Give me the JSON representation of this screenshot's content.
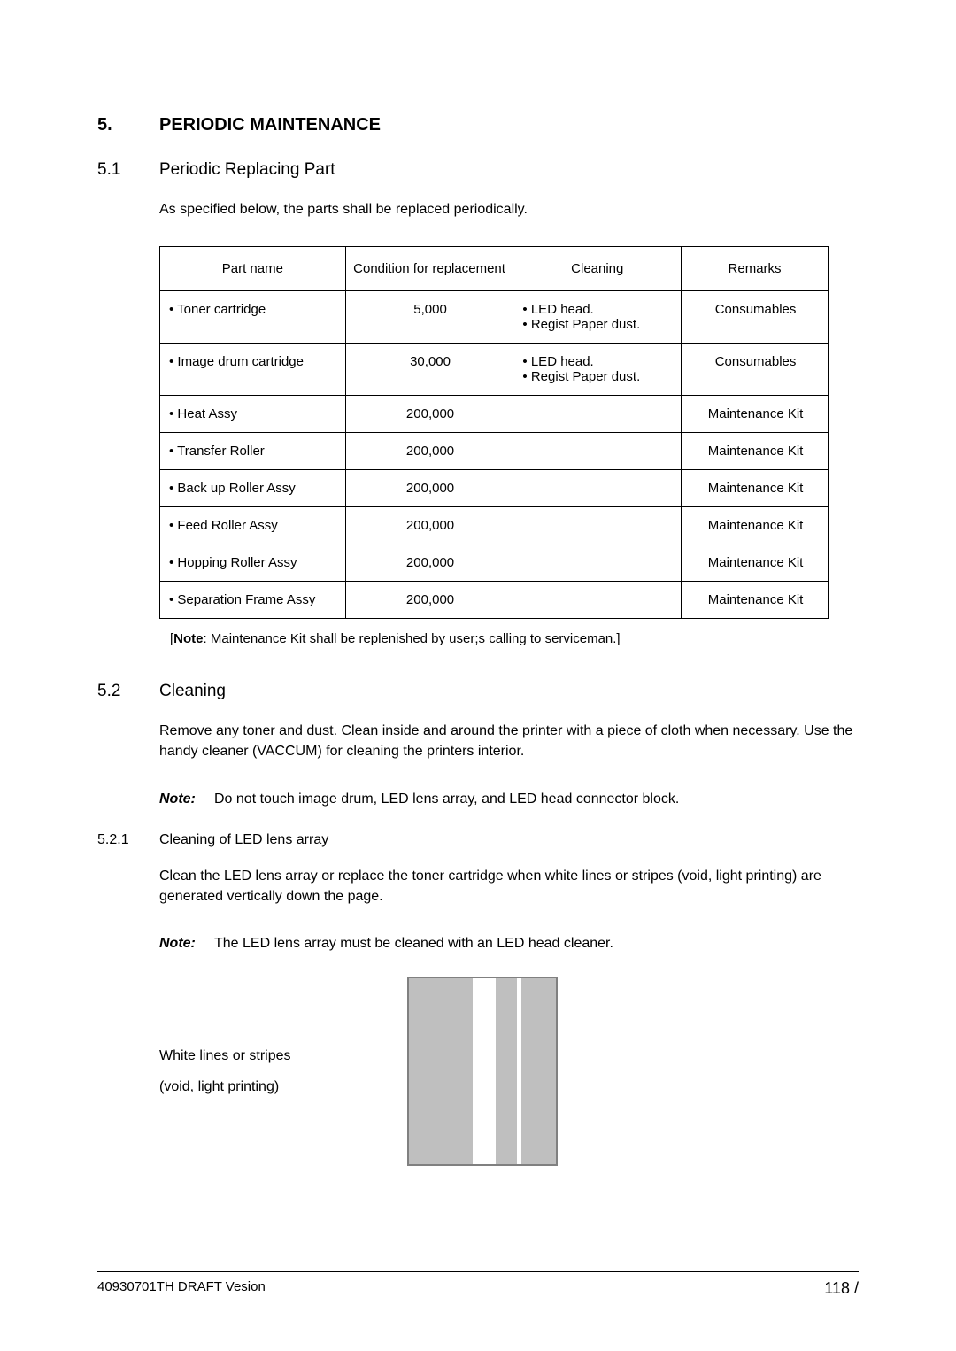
{
  "heading": {
    "number": "5.",
    "title": "PERIODIC MAINTENANCE"
  },
  "section_5_1": {
    "number": "5.1",
    "title": "Periodic Replacing Part",
    "intro": "As specified below, the parts shall be replaced periodically."
  },
  "table": {
    "headers": {
      "part": "Part name",
      "condition": "Condition for replacement",
      "cleaning": "Cleaning",
      "remarks": "Remarks"
    },
    "rows": [
      {
        "part": "•  Toner cartridge",
        "condition": "5,000",
        "cleaning": "• LED head.\n• Regist Paper dust.",
        "remarks": "Consumables"
      },
      {
        "part": "•  Image drum cartridge",
        "condition": "30,000",
        "cleaning": "• LED head.\n• Regist Paper dust.",
        "remarks": "Consumables"
      },
      {
        "part": "•  Heat Assy",
        "condition": "200,000",
        "cleaning": "",
        "remarks": "Maintenance Kit"
      },
      {
        "part": "•  Transfer Roller",
        "condition": "200,000",
        "cleaning": "",
        "remarks": "Maintenance Kit"
      },
      {
        "part": "•  Back up Roller Assy",
        "condition": "200,000",
        "cleaning": "",
        "remarks": "Maintenance Kit"
      },
      {
        "part": "•  Feed Roller Assy",
        "condition": "200,000",
        "cleaning": "",
        "remarks": "Maintenance Kit"
      },
      {
        "part": "•  Hopping Roller Assy",
        "condition": "200,000",
        "cleaning": "",
        "remarks": "Maintenance Kit"
      },
      {
        "part": "•  Separation Frame Assy",
        "condition": "200,000",
        "cleaning": "",
        "remarks": "Maintenance Kit"
      }
    ]
  },
  "table_note": {
    "prefix": "[",
    "bold": "Note",
    "rest": ": Maintenance Kit shall be replenished by user;s calling to serviceman.]"
  },
  "section_5_2": {
    "number": "5.2",
    "title": "Cleaning",
    "para": "Remove any toner and dust.  Clean inside and around the printer with a piece of cloth when necessary.  Use the handy cleaner (VACCUM) for cleaning the printers interior.",
    "note_label": "Note:",
    "note_text": "Do not touch image drum, LED lens array, and LED head connector block."
  },
  "section_5_2_1": {
    "number": "5.2.1",
    "title": "Cleaning of LED lens array",
    "para": "Clean the LED lens array or replace the toner cartridge when white lines or stripes (void, light printing) are generated vertically down the page.",
    "note_label": "Note:",
    "note_text": "The LED lens array must be cleaned with an LED head cleaner."
  },
  "diagram": {
    "label1": "White lines or stripes",
    "label2": "(void, light printing)"
  },
  "footer": {
    "left": "40930701TH  DRAFT Vesion",
    "right": "118 /"
  },
  "styling": {
    "page_bg": "#ffffff",
    "text_color": "#000000",
    "border_color": "#000000",
    "diagram_fill": "#bfbfbf",
    "diagram_border": "#808080"
  }
}
